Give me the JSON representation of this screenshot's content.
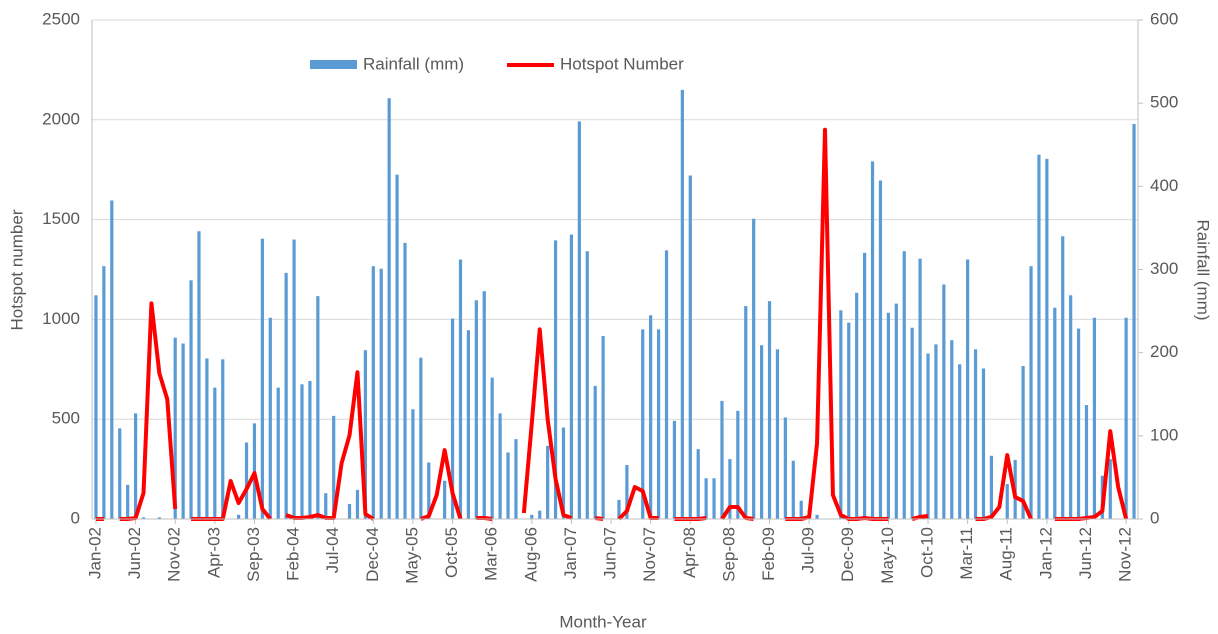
{
  "chart_data": {
    "type": "combo",
    "x_label": "Month-Year",
    "y_label": "Hotspot number",
    "y2_label": "Rainfall (mm)",
    "categories": [
      "Jan-02",
      null,
      null,
      null,
      null,
      "Jun-02",
      null,
      null,
      null,
      null,
      "Nov-02",
      null,
      null,
      null,
      null,
      "Apr-03",
      null,
      null,
      null,
      null,
      "Sep-03",
      null,
      null,
      null,
      null,
      "Feb-04",
      null,
      null,
      null,
      null,
      "Jul-04",
      null,
      null,
      null,
      null,
      "Dec-04",
      null,
      null,
      null,
      null,
      "May-05",
      null,
      null,
      null,
      null,
      "Oct-05",
      null,
      null,
      null,
      null,
      "Mar-06",
      null,
      null,
      null,
      null,
      "Aug-06",
      null,
      null,
      null,
      null,
      "Jan-07",
      null,
      null,
      null,
      null,
      "Jun-07",
      null,
      null,
      null,
      null,
      "Nov-07",
      null,
      null,
      null,
      null,
      "Apr-08",
      null,
      null,
      null,
      null,
      "Sep-08",
      null,
      null,
      null,
      null,
      "Feb-09",
      null,
      null,
      null,
      null,
      "Jul-09",
      null,
      null,
      null,
      null,
      "Dec-09",
      null,
      null,
      null,
      null,
      "May-10",
      null,
      null,
      null,
      null,
      "Oct-10",
      null,
      null,
      null,
      null,
      "Mar-11",
      null,
      null,
      null,
      null,
      "Aug-11",
      null,
      null,
      null,
      null,
      "Jan-12",
      null,
      null,
      null,
      null,
      "Jun-12",
      null,
      null,
      null,
      null,
      "Nov-12",
      null
    ],
    "series": [
      {
        "name": "Rainfall (mm)",
        "type": "bar",
        "axis": "y2",
        "color": "#5b9bd5",
        "values": [
          269,
          304,
          383,
          109,
          41,
          127,
          2,
          0,
          2,
          0,
          218,
          211,
          287,
          346,
          193,
          158,
          192,
          0,
          5,
          92,
          115,
          337,
          242,
          158,
          296,
          336,
          162,
          166,
          268,
          31,
          124,
          0,
          18,
          35,
          203,
          304,
          301,
          506,
          414,
          332,
          132,
          194,
          68,
          0,
          46,
          241,
          312,
          227,
          263,
          274,
          170,
          127,
          80,
          96,
          0,
          5,
          10,
          88,
          335,
          110,
          342,
          478,
          322,
          160,
          220,
          0,
          23,
          65,
          0,
          228,
          245,
          228,
          323,
          118,
          516,
          413,
          84,
          49,
          49,
          142,
          72,
          130,
          256,
          361,
          209,
          262,
          204,
          122,
          70,
          22,
          11,
          5,
          0,
          0,
          251,
          236,
          272,
          320,
          430,
          407,
          248,
          259,
          322,
          230,
          313,
          199,
          210,
          282,
          215,
          186,
          312,
          204,
          181,
          76,
          0,
          42,
          71,
          184,
          304,
          438,
          433,
          254,
          340,
          269,
          229,
          137,
          242,
          52,
          72,
          0,
          242,
          475
        ]
      },
      {
        "name": "Hotspot Number",
        "type": "line",
        "color": "#ff0000",
        "values": [
          0,
          0,
          null,
          0,
          0,
          5,
          130,
          1080,
          730,
          600,
          50,
          null,
          0,
          0,
          0,
          0,
          0,
          190,
          80,
          150,
          230,
          50,
          0,
          null,
          20,
          5,
          5,
          10,
          20,
          5,
          5,
          280,
          420,
          735,
          25,
          0,
          null,
          null,
          null,
          null,
          null,
          0,
          15,
          120,
          345,
          130,
          0,
          null,
          5,
          5,
          0,
          null,
          null,
          null,
          30,
          480,
          950,
          500,
          200,
          20,
          5,
          null,
          null,
          5,
          0,
          null,
          0,
          40,
          160,
          140,
          5,
          5,
          null,
          0,
          0,
          0,
          0,
          5,
          null,
          0,
          60,
          60,
          5,
          0,
          null,
          null,
          null,
          0,
          0,
          0,
          10,
          380,
          1950,
          120,
          20,
          0,
          0,
          5,
          0,
          0,
          0,
          null,
          null,
          0,
          10,
          15,
          null,
          null,
          null,
          null,
          null,
          0,
          0,
          10,
          60,
          320,
          110,
          90,
          0,
          null,
          null,
          0,
          0,
          0,
          0,
          5,
          10,
          40,
          440,
          160,
          0,
          null
        ]
      }
    ],
    "ylim": [
      0,
      2500
    ],
    "yticks": [
      0,
      500,
      1000,
      1500,
      2000,
      2500
    ],
    "y2lim": [
      0,
      600
    ],
    "y2ticks": [
      0,
      100,
      200,
      300,
      400,
      500,
      600
    ],
    "grid": true,
    "legend": "top"
  }
}
